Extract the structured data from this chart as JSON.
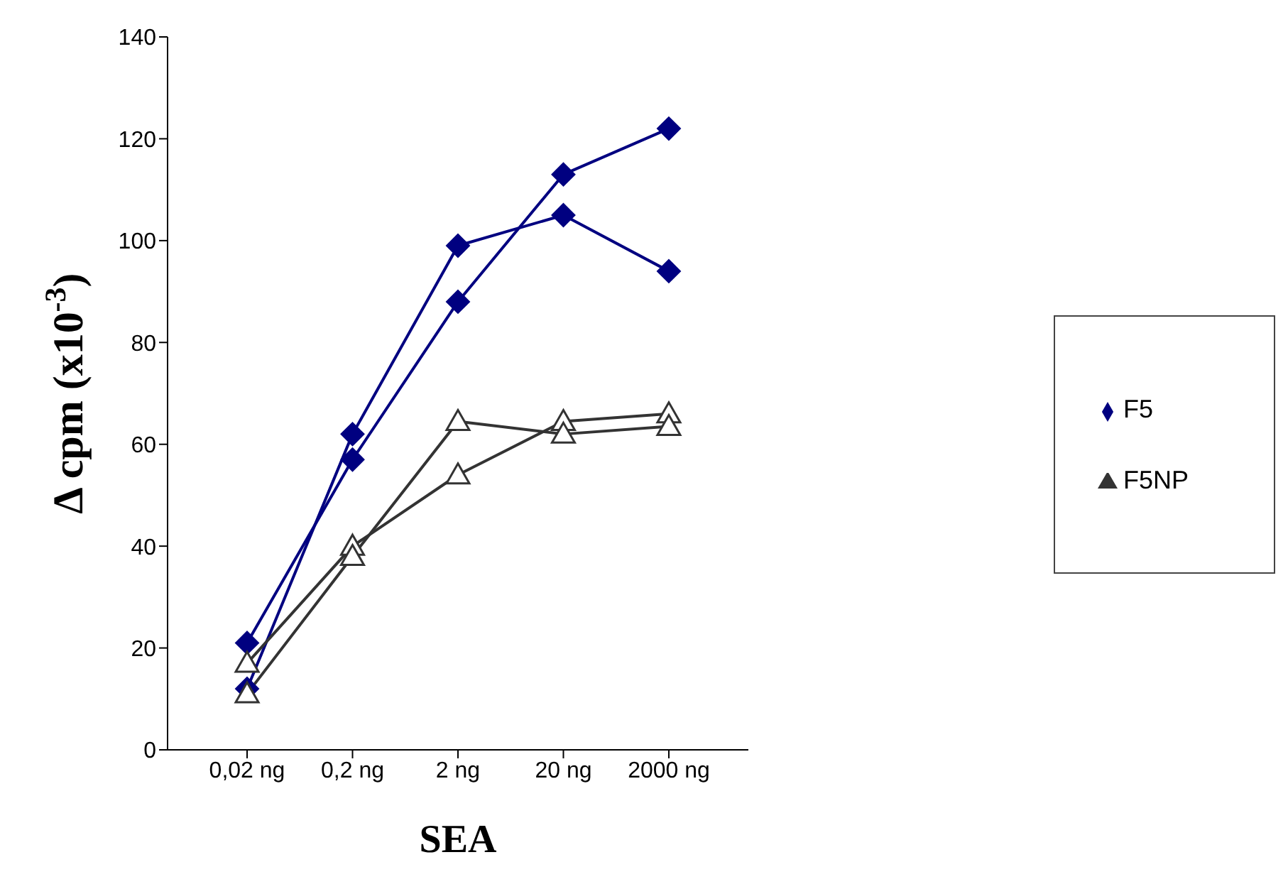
{
  "chart_data": {
    "type": "line",
    "xlabel": "SEA",
    "ylabel": "Δ cpm (x10$^{-3}$)",
    "categories": [
      "0,02 ng",
      "0,2 ng",
      "2 ng",
      "20 ng",
      "2000 ng"
    ],
    "series": [
      {
        "name": "F5",
        "color": "#000080",
        "marker": "diamond",
        "values": [
          12,
          62,
          99,
          105,
          94
        ]
      },
      {
        "color": "#000080",
        "marker": "diamond",
        "values": [
          21,
          57,
          88,
          113,
          122
        ]
      },
      {
        "name": "F5NP",
        "color": "#333333",
        "marker": "triangle",
        "values": [
          17,
          40,
          54,
          64.5,
          66
        ]
      },
      {
        "color": "#333333",
        "marker": "triangle",
        "values": [
          11,
          38,
          64.5,
          62,
          63.5
        ]
      }
    ],
    "ylim": [
      0,
      140
    ],
    "yticks": [
      0,
      20,
      40,
      60,
      80,
      100,
      120,
      140
    ],
    "grid": false,
    "legend": "right",
    "line_style": "solid"
  }
}
